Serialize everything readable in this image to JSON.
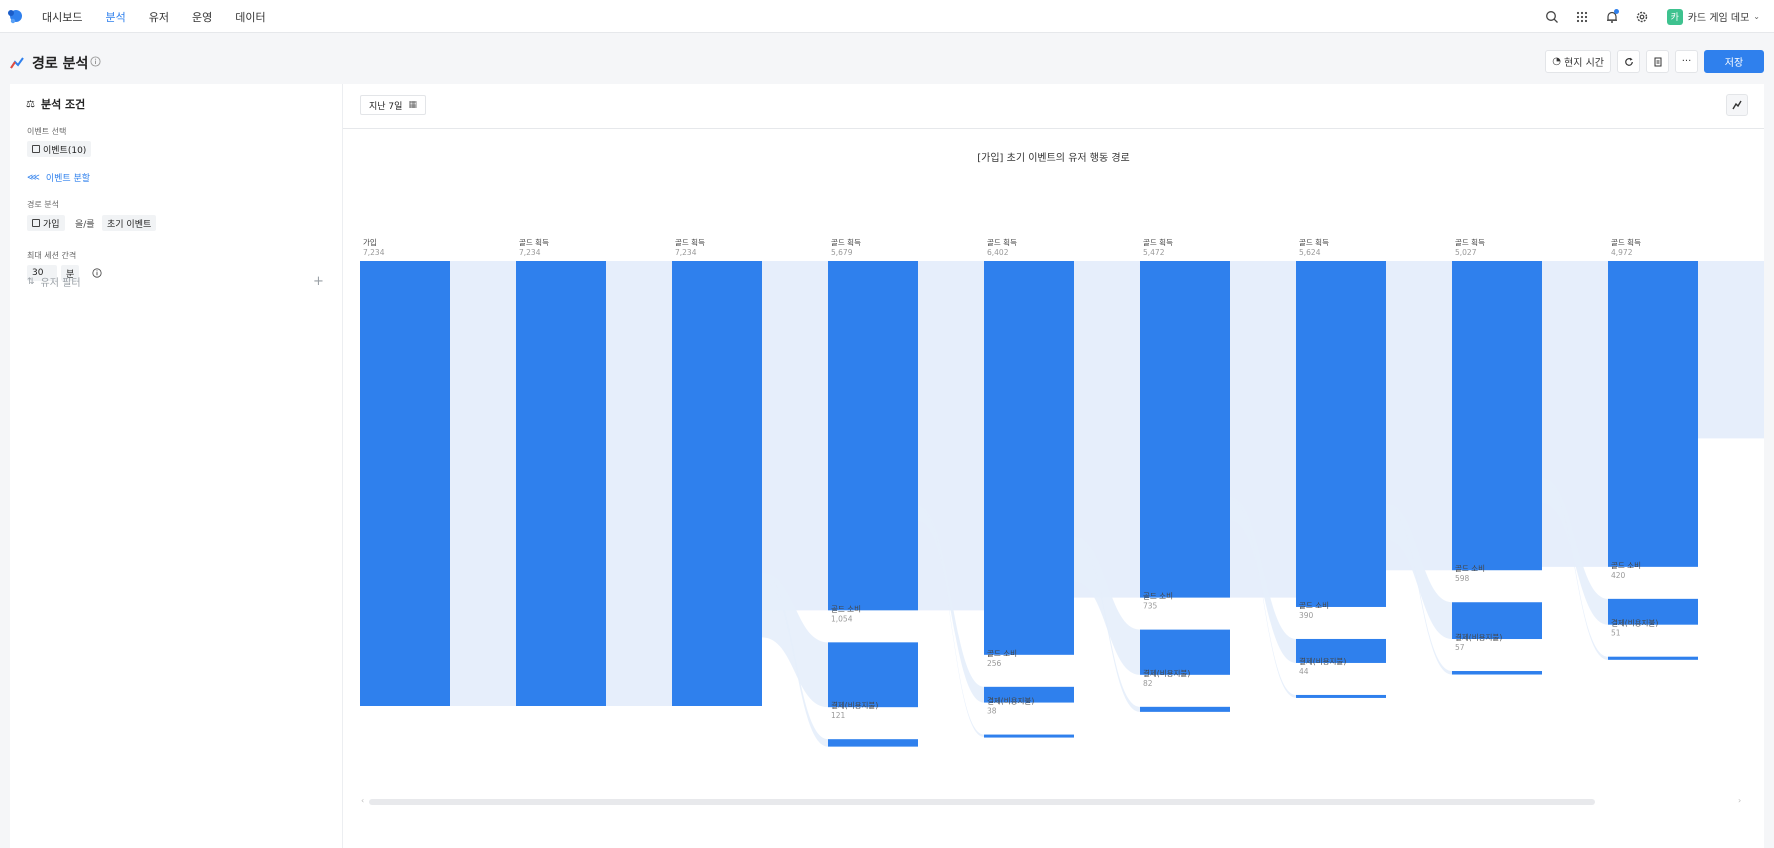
{
  "nav": {
    "items": [
      "대시보드",
      "분석",
      "유저",
      "운영",
      "데이터"
    ],
    "active_index": 1
  },
  "project": {
    "badge": "카",
    "name": "카드 게임 데모"
  },
  "header": {
    "title": "경로 분석",
    "local_time_label": "현지 시간",
    "save_label": "저장",
    "more_label": "···"
  },
  "panel": {
    "title": "분석 조건",
    "event_select_label": "이벤트 선택",
    "event_chip": "이벤트(10)",
    "event_split_label": "이벤트 분할",
    "path_label": "경로 분석",
    "path_start_chip": "가입",
    "path_connector": "을/를",
    "path_mode_chip": "초기 이벤트",
    "session_label": "최대 세션 간격",
    "session_value": "30",
    "session_unit": "분",
    "user_filter_label": "유저 필터",
    "add_label": "+"
  },
  "toolbar": {
    "date_range": "지난 7일"
  },
  "chart_data": {
    "type": "sankey",
    "title": "[가입] 초기 이벤트의 유저 행동 경로",
    "steps": [
      {
        "nodes": [
          {
            "name": "가입",
            "value": 7234
          }
        ]
      },
      {
        "nodes": [
          {
            "name": "골드 획득",
            "value": 7234
          }
        ]
      },
      {
        "nodes": [
          {
            "name": "골드 획득",
            "value": 7234
          }
        ]
      },
      {
        "nodes": [
          {
            "name": "골드 획득",
            "value": 5679
          },
          {
            "name": "골드 소비",
            "value": 1054
          },
          {
            "name": "결제(비용지불)",
            "value": 121
          }
        ]
      },
      {
        "nodes": [
          {
            "name": "골드 획득",
            "value": 6402
          },
          {
            "name": "골드 소비",
            "value": 256
          },
          {
            "name": "결제(비용지불)",
            "value": 38
          }
        ]
      },
      {
        "nodes": [
          {
            "name": "골드 획득",
            "value": 5472
          },
          {
            "name": "골드 소비",
            "value": 735
          },
          {
            "name": "결제(비용지불)",
            "value": 82
          }
        ]
      },
      {
        "nodes": [
          {
            "name": "골드 획득",
            "value": 5624
          },
          {
            "name": "골드 소비",
            "value": 390
          },
          {
            "name": "결제(비용지불)",
            "value": 44
          }
        ]
      },
      {
        "nodes": [
          {
            "name": "골드 획득",
            "value": 5027
          },
          {
            "name": "골드 소비",
            "value": 598
          },
          {
            "name": "결제(비용지불)",
            "value": 57
          }
        ]
      },
      {
        "nodes": [
          {
            "name": "골드 획득",
            "value": 4972
          },
          {
            "name": "골드 소비",
            "value": 420
          },
          {
            "name": "결제(비용지불)",
            "value": 51
          }
        ]
      }
    ]
  },
  "colors": {
    "accent": "#2f80ed",
    "bar": "#2f80ed",
    "link": "#e6eefb"
  }
}
